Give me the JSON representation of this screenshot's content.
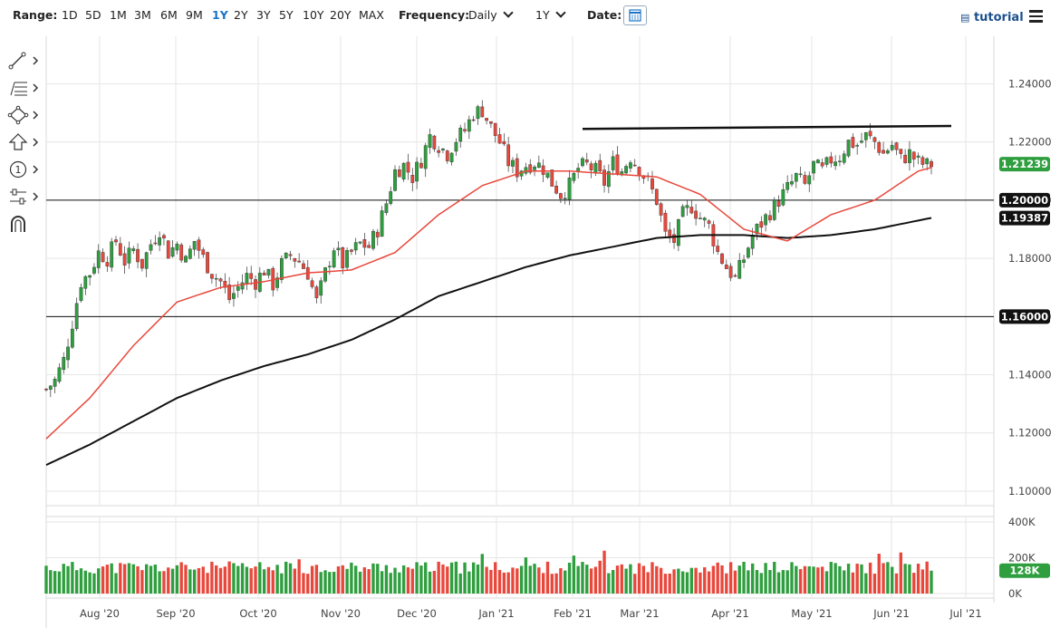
{
  "toolbar": {
    "range_label": "Range:",
    "ranges": [
      "1D",
      "5D",
      "1M",
      "3M",
      "6M",
      "9M",
      "1Y",
      "2Y",
      "3Y",
      "5Y",
      "10Y",
      "20Y",
      "MAX"
    ],
    "active_range": "1Y",
    "frequency_label": "Frequency:",
    "frequency_value": "Daily",
    "period_value": "1Y",
    "date_label": "Date:",
    "tutorial_label": "tutorial"
  },
  "sidebar": {
    "tools": [
      "line-tool-icon",
      "fibonacci-tool-icon",
      "shapes-tool-icon",
      "arrow-tool-icon",
      "counter-tool-icon",
      "measure-tool-icon",
      "magnet-icon"
    ]
  },
  "colors": {
    "up": "#2e9e3e",
    "down": "#e8483c",
    "ma50": "#e8483c",
    "ma200": "#111111",
    "accent": "#1a73c8"
  },
  "chart_data": {
    "type": "candlestick",
    "title": "",
    "ylim": [
      1.095,
      1.247
    ],
    "yticks": [
      "1.24000",
      "1.22000",
      "1.20000",
      "1.18000",
      "1.16000",
      "1.14000",
      "1.12000",
      "1.10000"
    ],
    "x_labels": [
      "Aug '20",
      "Sep '20",
      "Oct '20",
      "Nov '20",
      "Dec '20",
      "Jan '21",
      "Feb '21",
      "Mar '21",
      "Apr '21",
      "May '21",
      "Jun '21",
      "Jul '21"
    ],
    "price_markers": [
      {
        "label": "1.21239",
        "value": 1.21239,
        "style": "green"
      },
      {
        "label": "1.20000",
        "value": 1.2,
        "style": "black"
      },
      {
        "label": "1.19387",
        "value": 1.19387,
        "style": "black"
      },
      {
        "label": "1.16000",
        "value": 1.16,
        "style": "black"
      }
    ],
    "horizontal_lines": [
      1.2,
      1.16
    ],
    "resistance_line": {
      "from": "Feb '21",
      "to": "Jun '21",
      "start": 1.2245,
      "end": 1.2255
    },
    "close_path": [
      [
        0,
        1.135
      ],
      [
        2,
        1.138
      ],
      [
        4,
        1.145
      ],
      [
        6,
        1.158
      ],
      [
        8,
        1.172
      ],
      [
        10,
        1.175
      ],
      [
        12,
        1.182
      ],
      [
        14,
        1.18
      ],
      [
        16,
        1.186
      ],
      [
        18,
        1.179
      ],
      [
        20,
        1.183
      ],
      [
        22,
        1.178
      ],
      [
        24,
        1.185
      ],
      [
        26,
        1.19
      ],
      [
        28,
        1.182
      ],
      [
        30,
        1.185
      ],
      [
        32,
        1.179
      ],
      [
        34,
        1.186
      ],
      [
        36,
        1.18
      ],
      [
        38,
        1.175
      ],
      [
        40,
        1.172
      ],
      [
        42,
        1.166
      ],
      [
        44,
        1.17
      ],
      [
        46,
        1.174
      ],
      [
        48,
        1.172
      ],
      [
        50,
        1.176
      ],
      [
        52,
        1.171
      ],
      [
        54,
        1.178
      ],
      [
        56,
        1.181
      ],
      [
        58,
        1.179
      ],
      [
        60,
        1.175
      ],
      [
        62,
        1.165
      ],
      [
        64,
        1.175
      ],
      [
        66,
        1.184
      ],
      [
        68,
        1.178
      ],
      [
        70,
        1.182
      ],
      [
        72,
        1.185
      ],
      [
        74,
        1.184
      ],
      [
        76,
        1.19
      ],
      [
        78,
        1.199
      ],
      [
        80,
        1.21
      ],
      [
        82,
        1.212
      ],
      [
        84,
        1.208
      ],
      [
        86,
        1.214
      ],
      [
        88,
        1.222
      ],
      [
        90,
        1.219
      ],
      [
        92,
        1.216
      ],
      [
        94,
        1.221
      ],
      [
        96,
        1.224
      ],
      [
        98,
        1.23
      ],
      [
        100,
        1.231
      ],
      [
        102,
        1.225
      ],
      [
        104,
        1.22
      ],
      [
        106,
        1.213
      ],
      [
        108,
        1.21
      ],
      [
        110,
        1.212
      ],
      [
        112,
        1.213
      ],
      [
        114,
        1.211
      ],
      [
        116,
        1.206
      ],
      [
        118,
        1.202
      ],
      [
        120,
        1.205
      ],
      [
        122,
        1.211
      ],
      [
        124,
        1.212
      ],
      [
        126,
        1.21
      ],
      [
        128,
        1.206
      ],
      [
        130,
        1.213
      ],
      [
        132,
        1.21
      ],
      [
        134,
        1.215
      ],
      [
        136,
        1.211
      ],
      [
        138,
        1.206
      ],
      [
        140,
        1.2
      ],
      [
        142,
        1.188
      ],
      [
        144,
        1.186
      ],
      [
        146,
        1.195
      ],
      [
        148,
        1.198
      ],
      [
        150,
        1.194
      ],
      [
        152,
        1.191
      ],
      [
        154,
        1.182
      ],
      [
        156,
        1.177
      ],
      [
        158,
        1.173
      ],
      [
        160,
        1.18
      ],
      [
        162,
        1.188
      ],
      [
        164,
        1.192
      ],
      [
        166,
        1.196
      ],
      [
        168,
        1.2
      ],
      [
        170,
        1.204
      ],
      [
        172,
        1.208
      ],
      [
        174,
        1.205
      ],
      [
        176,
        1.212
      ],
      [
        178,
        1.21
      ],
      [
        180,
        1.214
      ],
      [
        182,
        1.215
      ],
      [
        184,
        1.22
      ],
      [
        186,
        1.219
      ],
      [
        188,
        1.222
      ],
      [
        190,
        1.22
      ],
      [
        192,
        1.216
      ],
      [
        194,
        1.219
      ],
      [
        196,
        1.214
      ],
      [
        198,
        1.216
      ],
      [
        200,
        1.213
      ],
      [
        202,
        1.212
      ],
      [
        203,
        1.2124
      ]
    ],
    "ma50_path": [
      [
        0,
        1.118
      ],
      [
        10,
        1.132
      ],
      [
        20,
        1.15
      ],
      [
        30,
        1.165
      ],
      [
        40,
        1.17
      ],
      [
        50,
        1.172
      ],
      [
        60,
        1.175
      ],
      [
        70,
        1.176
      ],
      [
        80,
        1.182
      ],
      [
        90,
        1.195
      ],
      [
        100,
        1.205
      ],
      [
        110,
        1.21
      ],
      [
        120,
        1.21
      ],
      [
        130,
        1.209
      ],
      [
        140,
        1.208
      ],
      [
        150,
        1.202
      ],
      [
        160,
        1.19
      ],
      [
        170,
        1.186
      ],
      [
        180,
        1.195
      ],
      [
        190,
        1.2
      ],
      [
        200,
        1.21
      ],
      [
        203,
        1.2112
      ]
    ],
    "ma200_path": [
      [
        0,
        1.109
      ],
      [
        10,
        1.116
      ],
      [
        20,
        1.124
      ],
      [
        30,
        1.132
      ],
      [
        40,
        1.138
      ],
      [
        50,
        1.143
      ],
      [
        60,
        1.147
      ],
      [
        70,
        1.152
      ],
      [
        80,
        1.159
      ],
      [
        90,
        1.167
      ],
      [
        100,
        1.172
      ],
      [
        110,
        1.177
      ],
      [
        120,
        1.181
      ],
      [
        130,
        1.184
      ],
      [
        140,
        1.187
      ],
      [
        150,
        1.188
      ],
      [
        160,
        1.188
      ],
      [
        170,
        1.187
      ],
      [
        180,
        1.188
      ],
      [
        190,
        1.19
      ],
      [
        200,
        1.193
      ],
      [
        203,
        1.1939
      ]
    ],
    "volume": {
      "ylim": [
        0,
        400
      ],
      "yticks": [
        "400K",
        "200K",
        "0K"
      ],
      "last_label": "128K",
      "last_value": 128
    }
  }
}
